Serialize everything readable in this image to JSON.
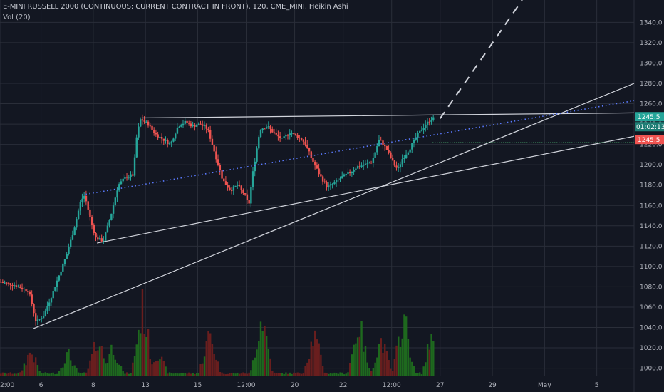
{
  "header": {
    "title": "E-MINI RUSSELL 2000 (CONTINUOUS: CURRENT CONTRACT IN FRONT), 120, CME_MINI, Heikin Ashi",
    "volume_indicator": "Vol (20)"
  },
  "colors": {
    "background": "#131722",
    "grid": "#2a2e39",
    "up": "#26a69a",
    "down": "#ef5350",
    "vol_up": "#1f6e1f",
    "vol_down": "#6e1f1f",
    "trendline": "#d1d4dc",
    "dotted_channel": "#5b7bff",
    "price_tag_green": "#26a69a",
    "price_tag_red": "#ef5350"
  },
  "chart_data": {
    "type": "candlestick",
    "style": "Heikin Ashi",
    "timeframe": "120",
    "y_axis": {
      "range": [
        992,
        1362
      ],
      "ticks": [
        1000,
        1020,
        1040,
        1060,
        1080,
        1100,
        1120,
        1140,
        1160,
        1180,
        1200,
        1220,
        1240,
        1260,
        1280,
        1300,
        1320,
        1340
      ],
      "tick_labels": [
        "1000.0",
        "1020.0",
        "1040.0",
        "1060.0",
        "1080.0",
        "1100.0",
        "1120.0",
        "1140.0",
        "1160.0",
        "1180.0",
        "1200.0",
        "1220.0",
        "1240.0",
        "1260.0",
        "1280.0",
        "1300.0",
        "1320.0",
        "1340.0"
      ],
      "grid": true
    },
    "x_axis": {
      "ticks": [
        0,
        5.5,
        12.5,
        19.5,
        26.5,
        33,
        39.5,
        46,
        52.5,
        59,
        66,
        73,
        80
      ],
      "tick_labels": [
        "2:00",
        "6",
        "8",
        "13",
        "15",
        "12:00",
        "20",
        "22",
        "12:00",
        "27",
        "29",
        "May",
        "5"
      ],
      "range": [
        0,
        85
      ],
      "grid": true
    },
    "price_path": [
      [
        0,
        1085
      ],
      [
        2,
        1082
      ],
      [
        4,
        1076
      ],
      [
        5,
        1045
      ],
      [
        6,
        1052
      ],
      [
        7,
        1070
      ],
      [
        8,
        1090
      ],
      [
        9,
        1110
      ],
      [
        10,
        1135
      ],
      [
        11,
        1165
      ],
      [
        11.5,
        1170
      ],
      [
        12.5,
        1140
      ],
      [
        13,
        1128
      ],
      [
        14,
        1125
      ],
      [
        15,
        1150
      ],
      [
        16,
        1180
      ],
      [
        17,
        1188
      ],
      [
        18,
        1190
      ],
      [
        18.5,
        1230
      ],
      [
        19,
        1245
      ],
      [
        20,
        1240
      ],
      [
        21,
        1230
      ],
      [
        22,
        1225
      ],
      [
        23,
        1220
      ],
      [
        24,
        1238
      ],
      [
        25,
        1242
      ],
      [
        26,
        1238
      ],
      [
        27,
        1240
      ],
      [
        28,
        1235
      ],
      [
        29,
        1210
      ],
      [
        30,
        1185
      ],
      [
        31,
        1175
      ],
      [
        32,
        1180
      ],
      [
        33,
        1170
      ],
      [
        33.5,
        1160
      ],
      [
        34,
        1190
      ],
      [
        35,
        1235
      ],
      [
        36,
        1238
      ],
      [
        37,
        1230
      ],
      [
        38,
        1225
      ],
      [
        39,
        1232
      ],
      [
        40,
        1228
      ],
      [
        41,
        1222
      ],
      [
        42,
        1205
      ],
      [
        43,
        1190
      ],
      [
        44,
        1178
      ],
      [
        45,
        1182
      ],
      [
        46,
        1188
      ],
      [
        47,
        1192
      ],
      [
        48,
        1198
      ],
      [
        49,
        1200
      ],
      [
        50,
        1203
      ],
      [
        51,
        1225
      ],
      [
        52,
        1215
      ],
      [
        53,
        1200
      ],
      [
        53.5,
        1195
      ],
      [
        54,
        1205
      ],
      [
        55,
        1215
      ],
      [
        56,
        1228
      ],
      [
        57,
        1238
      ],
      [
        58,
        1245.5
      ]
    ],
    "volume": {
      "peaks": [
        [
          4,
          330
        ],
        [
          9,
          300
        ],
        [
          13,
          500
        ],
        [
          15,
          400
        ],
        [
          19,
          900
        ],
        [
          21,
          320
        ],
        [
          28,
          560
        ],
        [
          35,
          800
        ],
        [
          42,
          550
        ],
        [
          48,
          700
        ],
        [
          51,
          480
        ],
        [
          54,
          780
        ],
        [
          58,
          650
        ],
        [
          59.5,
          180
        ]
      ],
      "max": 1000
    },
    "trendlines": [
      {
        "kind": "solid",
        "from": [
          4.5,
          1039
        ],
        "to": [
          85,
          1280
        ]
      },
      {
        "kind": "solid",
        "from": [
          13,
          1123
        ],
        "to": [
          85,
          1228
        ]
      },
      {
        "kind": "solid",
        "from": [
          19,
          1246
        ],
        "to": [
          85,
          1251
        ]
      },
      {
        "kind": "dotted",
        "from": [
          11.5,
          1171
        ],
        "to": [
          85,
          1263
        ]
      },
      {
        "kind": "dashed",
        "from": [
          59,
          1245.5
        ],
        "to": [
          70,
          1362
        ]
      }
    ],
    "current_price": {
      "value": 1245.5,
      "label": "1245.5",
      "countdown": "01:02:13",
      "second_label": "1245.5"
    }
  }
}
